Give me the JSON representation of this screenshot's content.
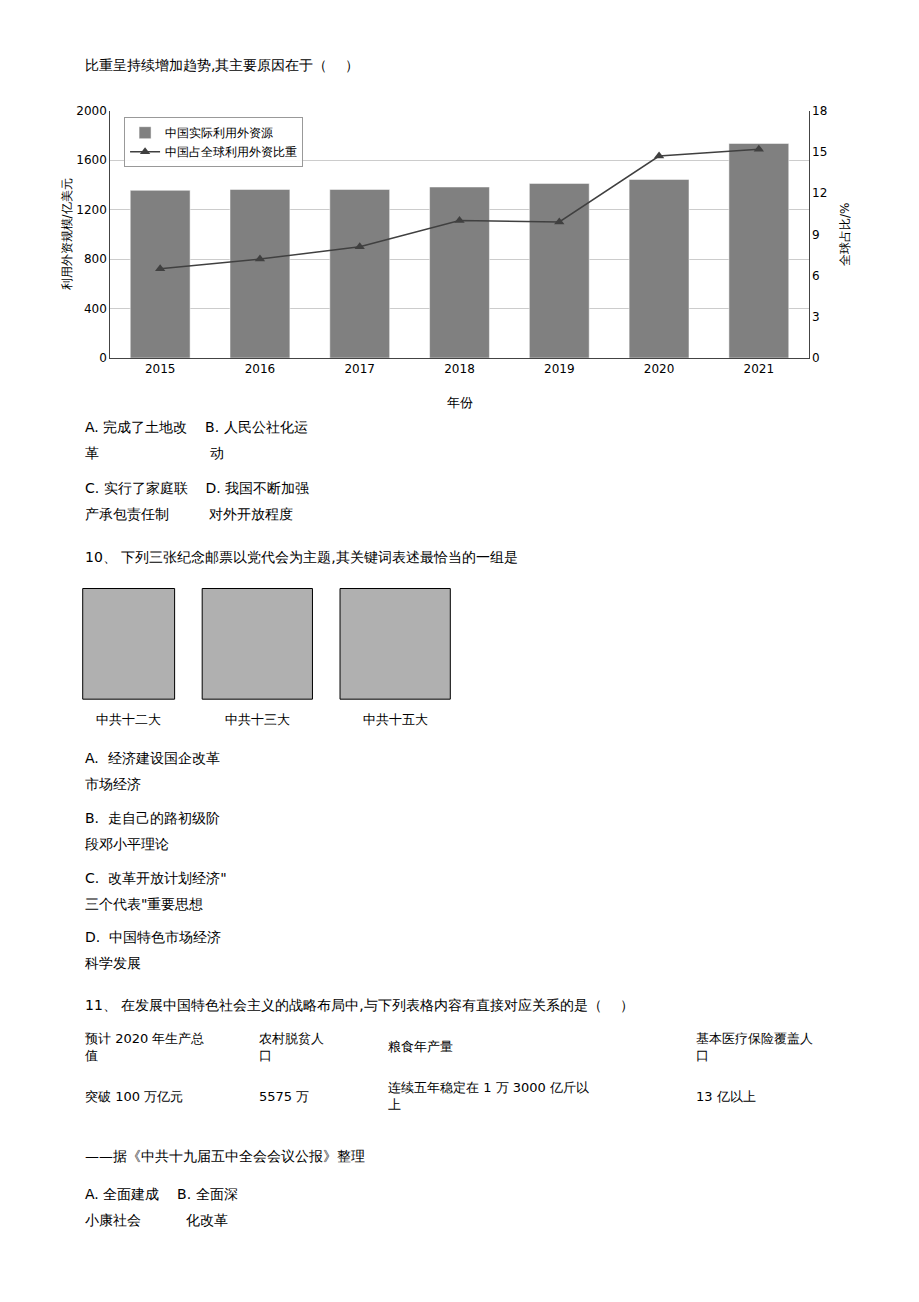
{
  "chart_data": {
    "type": "bar",
    "categories": [
      "2015",
      "2016",
      "2017",
      "2018",
      "2019",
      "2020",
      "2021"
    ],
    "series": [
      {
        "name": "中国实际利用外资源",
        "type": "bar",
        "color": "#808080",
        "values": [
          1356,
          1363,
          1363,
          1383,
          1412,
          1444,
          1735
        ]
      },
      {
        "name": "中国占全球利用外资比重",
        "type": "line",
        "color": "#404040",
        "marker": "triangle-up",
        "axis": "y2",
        "values": [
          6.5,
          7.2,
          8.1,
          10.0,
          9.9,
          14.7,
          15.2
        ]
      }
    ],
    "xlabel": "年份",
    "ylabel": "利用外资规模/亿美元",
    "y2label": "全球占比/%",
    "ylim": [
      0,
      2000
    ],
    "yticks": [
      0,
      400,
      800,
      1200,
      1600,
      2000
    ],
    "y2lim": [
      0,
      18
    ],
    "y2ticks": [
      0,
      3,
      6,
      9,
      12,
      15,
      18
    ],
    "grid": true,
    "legend": "upper left",
    "annotations": [
      "比重呈持续增加趋势,其主要原因在于（    ）",
      "A. 完成了土地改    B. 人民公社化运",
      "革                         动",
      "C. 实行了家庭联    D. 我国不断加强",
      "产承包责任制         对外开放程度",
      "10、 下列三张纪念邮票以党代会为主题,其关键词表述最恰当的一组是",
      "中共十二大",
      "中共十三大",
      "中共十五大",
      "A.  经济建设国企改革",
      "市场经济",
      "B.  走自己的路初级阶",
      "段邓小平理论",
      "C.  改革开放计划经济\"",
      "三个代表\"重要思想",
      "D.  中国特色市场经济",
      "科学发展",
      "11、 在发展中国特色社会主义的战略布局中,与下列表格内容有直接对应关系的是（    ）",
      "预计 2020 年生产总\n值",
      "突破 100 万亿元",
      "农村脱贫人\n口",
      "5575 万",
      "粮食年产量",
      "连续五年稳定在 1 万 3000 亿斤以\n上",
      "基本医疗保险覆盖人\n口",
      "13 亿以上",
      "——据《中共十九届五中全会会议公报》整理",
      "A. 全面建成    B. 全面深",
      "小康社会          化改革"
    ]
  }
}
